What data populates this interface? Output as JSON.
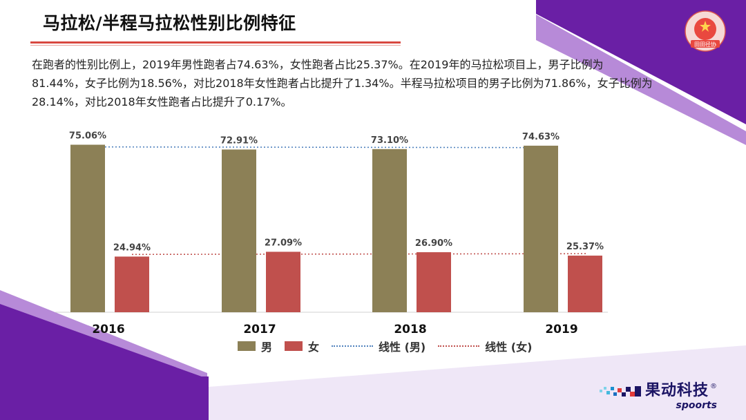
{
  "title": "马拉松/半程马拉松性别比例特征",
  "paragraph": "在跑者的性别比例上，2019年男性跑者占74.63%，女性跑者占比25.37%。在2019年的马拉松项目上，男子比例为81.44%，女子比例为18.56%，对比2018年女性跑者占比提升了1.34%。半程马拉松项目的男子比例为71.86%，女子比例为28.14%，对比2018年女性跑者占比提升了0.17%。",
  "colors": {
    "male": "#8c8056",
    "female": "#c0504d",
    "male_trend": "#4f81bd",
    "female_trend": "#c0504d",
    "purple": "#6a1fa5",
    "title_rule": "#d8473f"
  },
  "chart_data": {
    "type": "bar",
    "categories": [
      "2016",
      "2017",
      "2018",
      "2019"
    ],
    "series": [
      {
        "name": "男",
        "values": [
          75.06,
          72.91,
          73.1,
          74.63
        ],
        "labels": [
          "75.06%",
          "72.91%",
          "73.10%",
          "74.63%"
        ]
      },
      {
        "name": "女",
        "values": [
          24.94,
          27.09,
          26.9,
          25.37
        ],
        "labels": [
          "24.94%",
          "27.09%",
          "26.90%",
          "25.37%"
        ]
      }
    ],
    "trendlines": [
      {
        "name": "线性 (男)",
        "series": "男",
        "style": "dotted"
      },
      {
        "name": "线性 (女)",
        "series": "女",
        "style": "dotted"
      }
    ],
    "ylim": [
      0,
      78
    ],
    "legend": "bottom",
    "grid": false
  },
  "legend": {
    "male": "男",
    "female": "女",
    "male_trend": "线性 (男)",
    "female_trend": "线性 (女)"
  },
  "emblem": {
    "text": "田田径协"
  },
  "brand": {
    "name": "果动科技",
    "sub": "spoorts",
    "reg": "®"
  }
}
